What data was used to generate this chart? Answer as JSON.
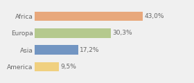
{
  "categories": [
    "Africa",
    "Europa",
    "Asia",
    "America"
  ],
  "values": [
    43.0,
    30.3,
    17.2,
    9.5
  ],
  "labels": [
    "43,0%",
    "30,3%",
    "17,2%",
    "9,5%"
  ],
  "bar_colors": [
    "#e8a87c",
    "#b5c98e",
    "#7295c2",
    "#f0d080"
  ],
  "background_color": "#f0f0f0",
  "xlim": [
    0,
    62
  ],
  "label_fontsize": 6.5,
  "tick_fontsize": 6.5,
  "bar_height": 0.55
}
